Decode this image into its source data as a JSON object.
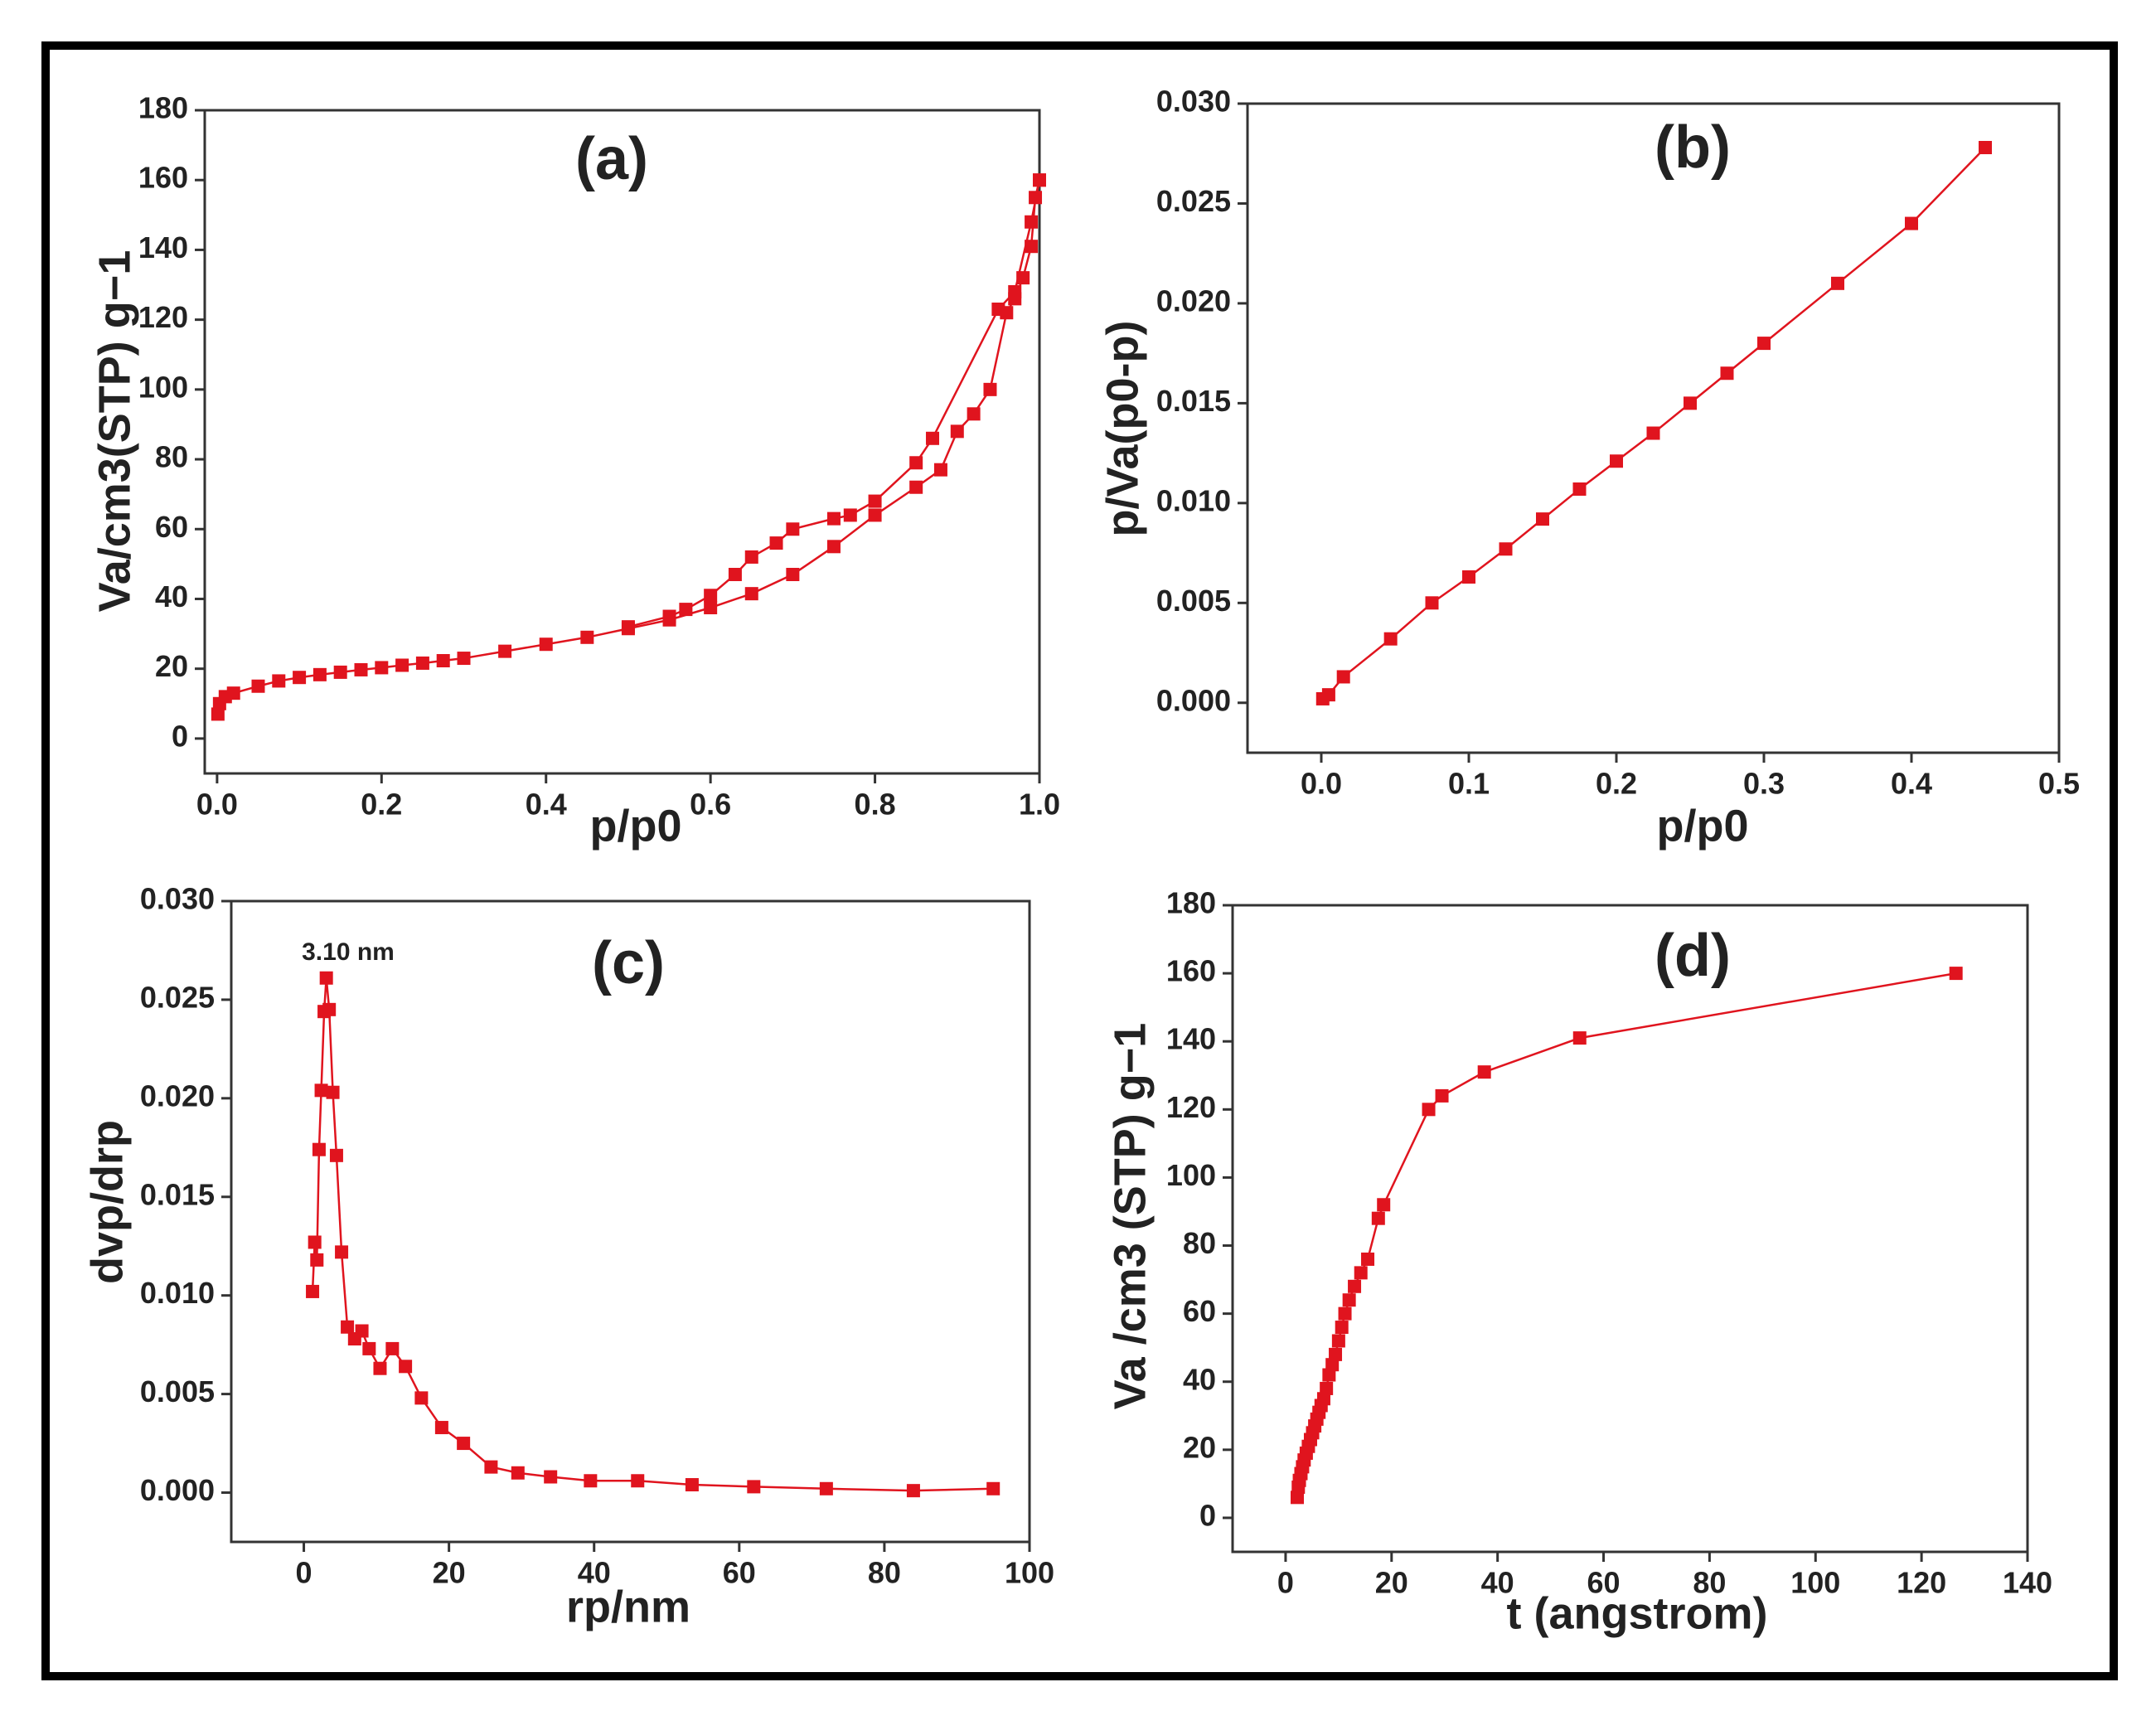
{
  "chart_data": [
    {
      "type": "line",
      "title": "(a)",
      "x_label": "p/p0",
      "y_label": "Va/cm3(STP) g−1",
      "xlim": [
        -0.015,
        1.0
      ],
      "ylim": [
        -10,
        180
      ],
      "xticks": [
        {
          "value": 0,
          "label": "0.0"
        },
        {
          "value": 0.2,
          "label": "0.2"
        },
        {
          "value": 0.4,
          "label": "0.4"
        },
        {
          "value": 0.6,
          "label": "0.6"
        },
        {
          "value": 0.8,
          "label": "0.8"
        },
        {
          "value": 1,
          "label": "1.0"
        }
      ],
      "yticks": [
        0,
        20,
        40,
        60,
        80,
        100,
        120,
        140,
        160,
        180
      ],
      "series": [
        {
          "color": "#e0141e",
          "x": [
            0.001,
            0.003,
            0.01,
            0.02,
            0.05,
            0.075,
            0.1,
            0.125,
            0.15,
            0.175,
            0.2,
            0.225,
            0.25,
            0.275,
            0.3,
            0.35,
            0.4,
            0.45,
            0.5,
            0.55,
            0.6,
            0.65,
            0.7,
            0.75,
            0.8,
            0.85,
            0.88,
            0.9,
            0.92,
            0.94,
            0.96,
            0.97,
            0.98,
            0.99,
            0.995,
            1.0
          ],
          "values": [
            7,
            10,
            12,
            13,
            15,
            16.5,
            17.5,
            18.3,
            19,
            19.7,
            20.3,
            21,
            21.6,
            22.3,
            23,
            25,
            27,
            29,
            31.5,
            34,
            37.5,
            41.5,
            47,
            55,
            64,
            72,
            77,
            88,
            93,
            100,
            122,
            126,
            132,
            141,
            155,
            160
          ]
        },
        {
          "color": "#e0141e",
          "x": [
            1.0,
            0.99,
            0.97,
            0.95,
            0.87,
            0.85,
            0.8,
            0.77,
            0.75,
            0.7,
            0.68,
            0.65,
            0.63,
            0.6,
            0.57,
            0.55,
            0.5
          ],
          "values": [
            160,
            148,
            128,
            123,
            86,
            79,
            68,
            64,
            63,
            60,
            56,
            52,
            47,
            41,
            37,
            35,
            32
          ]
        }
      ]
    },
    {
      "type": "line",
      "title": "(b)",
      "x_label": "p/p0",
      "y_label": "p/Va(p0-p)",
      "xlim": [
        -0.05,
        0.5
      ],
      "ylim": [
        -0.0025,
        0.03
      ],
      "xticks": [
        {
          "value": 0,
          "label": "0.0"
        },
        0.1,
        0.2,
        0.3,
        0.4,
        0.5
      ],
      "yticks": [
        {
          "value": 0,
          "label": "0.000"
        },
        {
          "value": 0.005,
          "label": "0.005"
        },
        {
          "value": 0.01,
          "label": "0.010"
        },
        {
          "value": 0.015,
          "label": "0.015"
        },
        {
          "value": 0.02,
          "label": "0.020"
        },
        {
          "value": 0.025,
          "label": "0.025"
        },
        {
          "value": 0.03,
          "label": "0.030"
        }
      ],
      "series": [
        {
          "color": "#e0141e",
          "x": [
            0.001,
            0.005,
            0.015,
            0.047,
            0.075,
            0.1,
            0.125,
            0.15,
            0.175,
            0.2,
            0.225,
            0.25,
            0.275,
            0.3,
            0.35,
            0.4,
            0.45
          ],
          "values": [
            0.0002,
            0.0004,
            0.0013,
            0.0032,
            0.005,
            0.0063,
            0.0077,
            0.0092,
            0.0107,
            0.0121,
            0.0135,
            0.015,
            0.0165,
            0.018,
            0.021,
            0.024,
            0.0278
          ]
        }
      ]
    },
    {
      "type": "line",
      "title": "(c)",
      "x_label": "rp/nm",
      "y_label": "dvp/drp",
      "annotation": "3.10 nm",
      "xlim": [
        -10,
        100
      ],
      "ylim": [
        -0.0025,
        0.03
      ],
      "xticks": [
        0,
        20,
        40,
        60,
        80,
        100
      ],
      "yticks": [
        {
          "value": 0,
          "label": "0.000"
        },
        {
          "value": 0.005,
          "label": "0.005"
        },
        {
          "value": 0.01,
          "label": "0.010"
        },
        {
          "value": 0.015,
          "label": "0.015"
        },
        {
          "value": 0.02,
          "label": "0.020"
        },
        {
          "value": 0.025,
          "label": "0.025"
        },
        {
          "value": 0.03,
          "label": "0.030"
        }
      ],
      "series": [
        {
          "color": "#e0141e",
          "x": [
            1.2,
            1.5,
            1.8,
            2.1,
            2.4,
            2.8,
            3.1,
            3.5,
            4.0,
            4.5,
            5.2,
            6.0,
            7.0,
            8.0,
            9.0,
            10.5,
            12.2,
            14.0,
            16.2,
            19,
            22,
            25.8,
            29.5,
            34,
            39.5,
            46,
            53.5,
            62,
            72,
            84,
            95
          ],
          "values": [
            0.0102,
            0.0127,
            0.0118,
            0.0174,
            0.0204,
            0.0244,
            0.0261,
            0.0245,
            0.0203,
            0.0171,
            0.0122,
            0.0084,
            0.0078,
            0.0082,
            0.0073,
            0.0063,
            0.0073,
            0.0064,
            0.0048,
            0.0033,
            0.0025,
            0.0013,
            0.001,
            0.0008,
            0.0006,
            0.0006,
            0.0004,
            0.0003,
            0.0002,
            0.0001,
            0.0002
          ]
        }
      ]
    },
    {
      "type": "line",
      "title": "(d)",
      "x_label": "t (angstrom)",
      "y_label": "Va /cm3 (STP) g−1",
      "xlim": [
        -10,
        140
      ],
      "ylim": [
        -10,
        180
      ],
      "xticks": [
        0,
        20,
        40,
        60,
        80,
        100,
        120,
        140
      ],
      "yticks": [
        0,
        20,
        40,
        60,
        80,
        100,
        120,
        140,
        160,
        180
      ],
      "series": [
        {
          "color": "#e0141e",
          "x": [
            2.2,
            2.4,
            2.6,
            2.9,
            3.2,
            3.5,
            3.9,
            4.3,
            4.7,
            5.1,
            5.5,
            5.9,
            6.3,
            6.7,
            7.2,
            7.7,
            8.2,
            8.8,
            9.4,
            10,
            10.6,
            11.2,
            12,
            13,
            14.2,
            15.5,
            17.5,
            18.5,
            27,
            29.5,
            37.5,
            55.5,
            126.5
          ],
          "values": [
            6,
            9,
            11,
            13,
            15,
            17,
            19,
            21,
            23,
            25,
            27,
            29,
            31,
            33,
            35,
            38,
            42,
            45,
            48,
            52,
            56,
            60,
            64,
            68,
            72,
            76,
            88,
            92,
            120,
            124,
            131,
            141,
            160
          ]
        }
      ]
    }
  ]
}
